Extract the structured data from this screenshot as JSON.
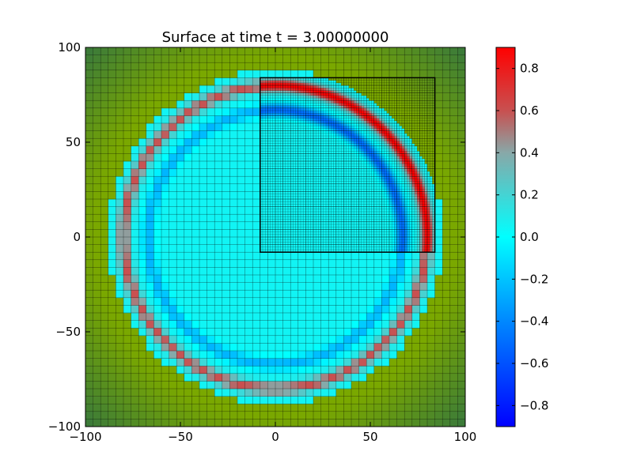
{
  "chart_data": {
    "type": "heatmap",
    "title": "Surface at time t =     3.00000000",
    "xlabel": "",
    "ylabel": "",
    "xlim": [
      -100,
      100
    ],
    "ylim": [
      -100,
      100
    ],
    "xticks": [
      -100,
      -50,
      0,
      50,
      100
    ],
    "yticks": [
      -100,
      -50,
      0,
      50,
      100
    ],
    "xtick_labels": [
      "−100",
      "−50",
      "0",
      "50",
      "100"
    ],
    "ytick_labels": [
      "−100",
      "−50",
      "0",
      "50",
      "100"
    ],
    "colorbar": {
      "range": [
        -0.9,
        0.9
      ],
      "ticks": [
        0.8,
        0.6,
        0.4,
        0.2,
        0.0,
        -0.2,
        -0.4,
        -0.6,
        -0.8
      ],
      "tick_labels": [
        "0.8",
        "0.6",
        "0.4",
        "0.2",
        "0.0",
        "−0.2",
        "−0.4",
        "−0.6",
        "−0.8"
      ],
      "colors": {
        "min": "#0000ff",
        "low": "#0088ff",
        "zero": "#00ffff",
        "mid": "#88a8a8",
        "high": "#c85050",
        "max": "#ff0000"
      }
    },
    "background": {
      "land_color": "#7aa800",
      "corner_color": "#3a7a3a"
    },
    "wave": {
      "center": [
        0,
        0
      ],
      "crest_radius": 80,
      "crest_value": 0.55,
      "crest_value_refined": 0.85,
      "trough_radius": 67,
      "trough_value": -0.3,
      "trough_value_refined": -0.55,
      "outer_edge_radius": 88
    },
    "coarse_grid_spacing": 4,
    "refined_patch": {
      "x": [
        -8,
        84
      ],
      "y": [
        -8,
        84
      ],
      "grid_spacing": 1.333,
      "border_color": "#000000"
    }
  }
}
